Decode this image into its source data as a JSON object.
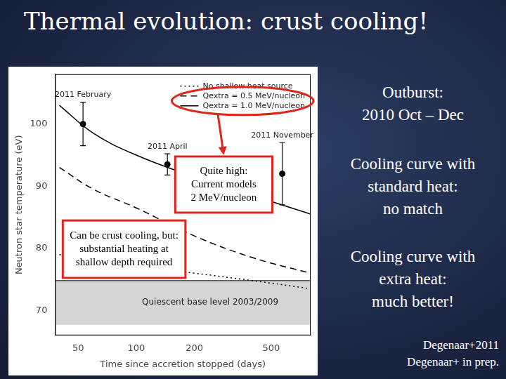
{
  "slide": {
    "title": "Thermal evolution: crust cooling!",
    "side_text": [
      [
        "Outburst:",
        "2010 Oct – Dec"
      ],
      [
        "Cooling curve with",
        "standard heat:",
        "no match"
      ],
      [
        "Cooling curve with",
        "extra heat:",
        "much better!"
      ]
    ],
    "references": [
      "Degenaar+2011",
      "Degenaar+ in prep."
    ]
  },
  "chart_data": {
    "type": "scatter",
    "x_label": "Time since accretion stopped (days)",
    "y_label": "Neutron star temperature (eV)",
    "log": "x",
    "xlim": [
      38,
      800
    ],
    "xticks": [
      50,
      100,
      200,
      500
    ],
    "ylim": [
      66,
      108
    ],
    "yticks": [
      70,
      80,
      90,
      100
    ],
    "grid": false,
    "legend": "upper right",
    "series": [
      {
        "name": "No shallow heat source",
        "type": "line",
        "line_style": "dotted",
        "color": "#000000",
        "x": [
          40,
          60,
          100,
          200,
          400,
          800
        ],
        "values": [
          79,
          78,
          77,
          76,
          74.8,
          73.5
        ]
      },
      {
        "name": "Qextra = 0.5 MeV/nucleon",
        "type": "line",
        "line_style": "dashed",
        "color": "#000000",
        "x": [
          40,
          60,
          100,
          200,
          400,
          800
        ],
        "values": [
          93,
          89.5,
          86.5,
          82,
          78.5,
          76
        ]
      },
      {
        "name": "Qextra = 1.0 MeV/nucleon",
        "type": "line",
        "line_style": "solid",
        "color": "#000000",
        "x": [
          40,
          60,
          100,
          200,
          400,
          800
        ],
        "values": [
          103,
          98.5,
          95,
          91.5,
          88.5,
          85.5
        ]
      },
      {
        "type": "scatter",
        "marker": "circle",
        "color": "#000000",
        "x": [
          53,
          145,
          570
        ],
        "values": [
          100,
          93.5,
          92
        ],
        "errors": [
          3.5,
          1.7,
          5
        ],
        "point_labels": [
          "2011 February",
          "2011 April",
          "2011 November"
        ]
      }
    ],
    "band": {
      "label": "Quiescent base level 2003/2009",
      "range": [
        67.7,
        74.8
      ]
    },
    "annotations": [
      {
        "text": [
          "Quite high:",
          "Current models",
          "2 MeV/nucleon"
        ]
      },
      {
        "text": [
          "Can be crust cooling, but:",
          "substantial heating at",
          "shallow depth required"
        ]
      }
    ]
  }
}
